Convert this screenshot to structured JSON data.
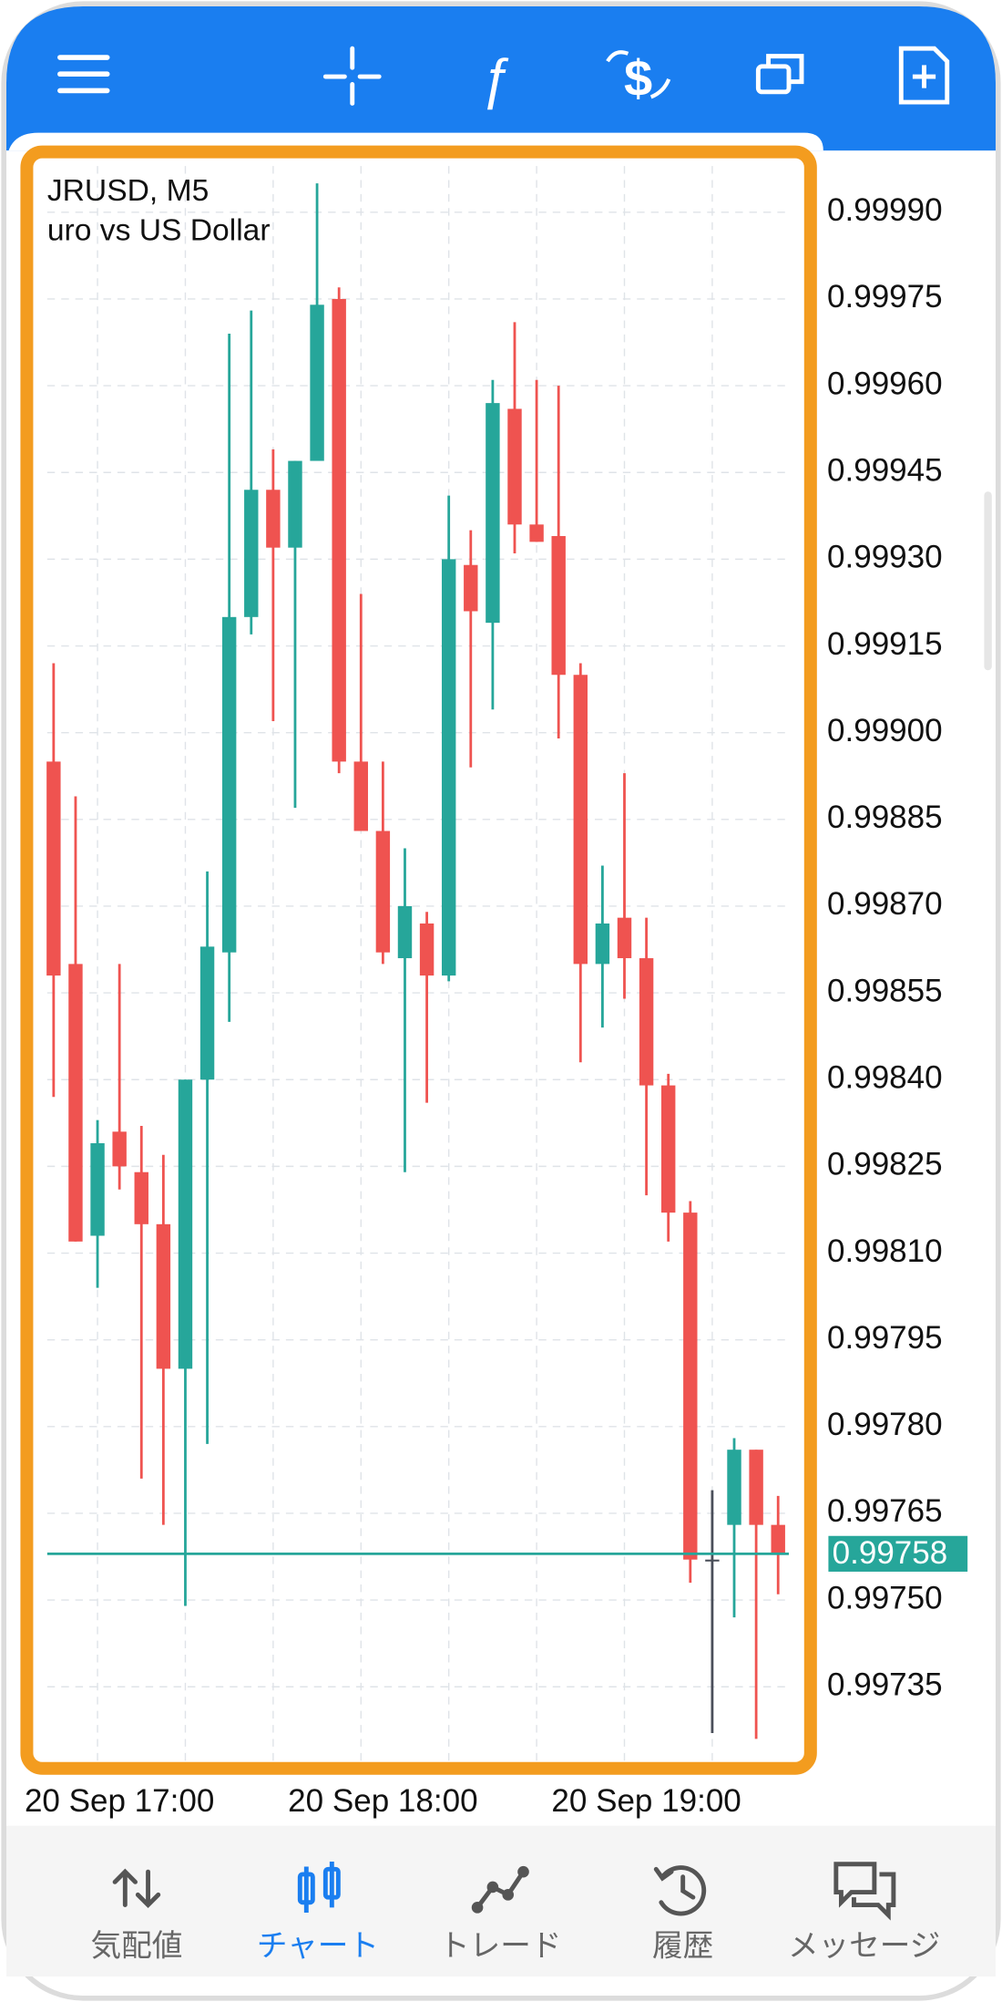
{
  "chart_data": {
    "type": "candlestick",
    "symbol": "JRUSD, M5",
    "description": "uro vs US Dollar",
    "categories": [
      null,
      null,
      null,
      "20 Sep 17:00",
      null,
      null,
      null,
      null,
      null,
      null,
      null,
      null,
      null,
      null,
      null,
      "20 Sep 18:00",
      null,
      null,
      null,
      null,
      null,
      null,
      null,
      null,
      null,
      null,
      null,
      "20 Sep 19:00",
      null,
      null,
      null,
      null,
      null,
      null
    ],
    "open": [
      0.99895,
      0.9986,
      0.99813,
      0.99831,
      0.99824,
      0.99815,
      0.9979,
      0.9984,
      0.99862,
      0.9992,
      0.99942,
      0.99932,
      0.99947,
      0.99975,
      0.99895,
      0.99883,
      0.99861,
      0.99867,
      0.99858,
      0.99929,
      0.99919,
      0.99956,
      0.99936,
      0.99934,
      0.9991,
      0.9986,
      0.99868,
      0.99861,
      0.99839,
      0.99817,
      0.99757,
      0.99763,
      0.99776,
      0.99763
    ],
    "high": [
      0.99912,
      0.99889,
      0.99833,
      0.9986,
      0.99832,
      0.99827,
      0.9984,
      0.99876,
      0.99969,
      0.99973,
      0.99949,
      0.99947,
      0.99995,
      0.99977,
      0.99924,
      0.99895,
      0.9988,
      0.99869,
      0.99941,
      0.99935,
      0.99961,
      0.99971,
      0.99961,
      0.9996,
      0.99912,
      0.99877,
      0.99893,
      0.99868,
      0.99841,
      0.99819,
      0.99769,
      0.99778,
      0.99776,
      0.99768
    ],
    "low": [
      0.99837,
      0.99812,
      0.99804,
      0.99821,
      0.99771,
      0.99763,
      0.99749,
      0.99777,
      0.9985,
      0.99917,
      0.99902,
      0.99887,
      0.99947,
      0.99893,
      0.99883,
      0.9986,
      0.99824,
      0.99836,
      0.99857,
      0.99894,
      0.99904,
      0.99931,
      0.99933,
      0.99899,
      0.99843,
      0.99849,
      0.99854,
      0.9982,
      0.99812,
      0.99753,
      0.99727,
      0.99747,
      0.99726,
      0.99751
    ],
    "close": [
      0.99858,
      0.99812,
      0.99829,
      0.99825,
      0.99815,
      0.9979,
      0.9984,
      0.99863,
      0.9992,
      0.99942,
      0.99932,
      0.99947,
      0.99974,
      0.99895,
      0.99883,
      0.99862,
      0.9987,
      0.99858,
      0.9993,
      0.99921,
      0.99957,
      0.99936,
      0.99933,
      0.9991,
      0.9986,
      0.99867,
      0.99861,
      0.99839,
      0.99817,
      0.99757,
      0.99757,
      0.99776,
      0.99763,
      0.99758
    ],
    "up_color": "#26a69a",
    "down_color": "#ef5350",
    "doji_color": "#4a4f5a",
    "ylim": [
      0.99722,
      0.99998
    ],
    "yticks": [
      {
        "value": 0.9999,
        "label": "0.99990"
      },
      0.99975,
      {
        "value": 0.9996,
        "label": "0.99960"
      },
      0.99945,
      {
        "value": 0.9993,
        "label": "0.99930"
      },
      0.99915,
      {
        "value": 0.999,
        "label": "0.99900"
      },
      0.99885,
      {
        "value": 0.9987,
        "label": "0.99870"
      },
      0.99855,
      {
        "value": 0.9984,
        "label": "0.99840"
      },
      0.99825,
      {
        "value": 0.9981,
        "label": "0.99810"
      },
      0.99795,
      {
        "value": 0.9978,
        "label": "0.99780"
      },
      0.99765,
      {
        "value": 0.9975,
        "label": "0.99750"
      },
      0.99735
    ],
    "grid": true,
    "current_price": 0.99758,
    "current_price_color": "#26a69a"
  },
  "nav": {
    "items": [
      "気配値",
      "チャート",
      "トレード",
      "履歴",
      "メッセージ"
    ],
    "active": 1,
    "active_color": "#1a7ef0"
  }
}
